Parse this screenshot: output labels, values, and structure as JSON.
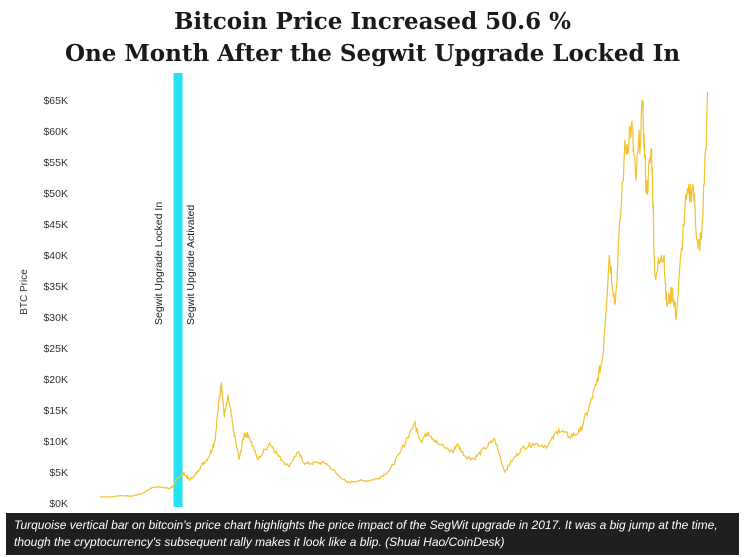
{
  "header": {
    "title_line1": "Bitcoin Price Increased 50.6 %",
    "title_line2": "One Month After the Segwit Upgrade Locked In"
  },
  "caption": {
    "text": "Turquoise vertical bar on bitcoin's price chart highlights the price impact of the SegWit upgrade in 2017. It was a big jump at the time, though the cryptocurrency's subsequent rally makes it look like a blip. (Shuai Hao/CoinDesk)"
  },
  "chart_data": {
    "type": "line",
    "title": "Bitcoin Price Increased 50.6 % One Month After the Segwit Upgrade Locked In",
    "ylabel": "BTC Price",
    "xlabel": "",
    "ylim": [
      0,
      65000
    ],
    "yticks": [
      {
        "value": 0,
        "label": "$0K"
      },
      {
        "value": 5000,
        "label": "$5K"
      },
      {
        "value": 10000,
        "label": "$10K"
      },
      {
        "value": 15000,
        "label": "$15K"
      },
      {
        "value": 20000,
        "label": "$20K"
      },
      {
        "value": 25000,
        "label": "$25K"
      },
      {
        "value": 30000,
        "label": "$30K"
      },
      {
        "value": 35000,
        "label": "$35K"
      },
      {
        "value": 40000,
        "label": "$40K"
      },
      {
        "value": 45000,
        "label": "$45K"
      },
      {
        "value": 50000,
        "label": "$50K"
      },
      {
        "value": 55000,
        "label": "$55K"
      },
      {
        "value": 60000,
        "label": "$60K"
      },
      {
        "value": 65000,
        "label": "$65K"
      }
    ],
    "xlim": [
      "2017-01-01",
      "2021-10-31"
    ],
    "grid": false,
    "annotations": [
      {
        "label": "Segwit Upgrade Locked In",
        "date": "2017-08-08"
      },
      {
        "label": "Segwit Upgrade Activated",
        "date": "2017-08-24"
      }
    ],
    "highlight": {
      "start": "2017-08-01",
      "end": "2017-08-24",
      "color": "#27e0f2"
    },
    "series": [
      {
        "name": "",
        "color": "#f2c230",
        "points": [
          [
            "2017-01-01",
            1000
          ],
          [
            "2017-02-01",
            1000
          ],
          [
            "2017-03-01",
            1200
          ],
          [
            "2017-04-01",
            1100
          ],
          [
            "2017-05-01",
            1500
          ],
          [
            "2017-06-01",
            2500
          ],
          [
            "2017-07-01",
            2600
          ],
          [
            "2017-07-20",
            2300
          ],
          [
            "2017-08-01",
            2800
          ],
          [
            "2017-08-15",
            4200
          ],
          [
            "2017-09-01",
            4800
          ],
          [
            "2017-09-15",
            3700
          ],
          [
            "2017-10-01",
            4400
          ],
          [
            "2017-10-20",
            6000
          ],
          [
            "2017-11-10",
            7400
          ],
          [
            "2017-11-28",
            10000
          ],
          [
            "2017-12-10",
            16500
          ],
          [
            "2017-12-17",
            19500
          ],
          [
            "2017-12-25",
            14000
          ],
          [
            "2018-01-06",
            17000
          ],
          [
            "2018-01-20",
            12000
          ],
          [
            "2018-02-06",
            7000
          ],
          [
            "2018-02-20",
            11000
          ],
          [
            "2018-03-05",
            11000
          ],
          [
            "2018-04-01",
            7000
          ],
          [
            "2018-05-05",
            9700
          ],
          [
            "2018-06-01",
            7500
          ],
          [
            "2018-06-28",
            5900
          ],
          [
            "2018-07-25",
            8200
          ],
          [
            "2018-08-15",
            6300
          ],
          [
            "2018-09-15",
            6500
          ],
          [
            "2018-10-15",
            6400
          ],
          [
            "2018-11-20",
            4400
          ],
          [
            "2018-12-15",
            3300
          ],
          [
            "2019-01-15",
            3600
          ],
          [
            "2019-02-15",
            3600
          ],
          [
            "2019-03-15",
            4000
          ],
          [
            "2019-04-15",
            5200
          ],
          [
            "2019-05-15",
            8000
          ],
          [
            "2019-06-26",
            12900
          ],
          [
            "2019-07-15",
            10000
          ],
          [
            "2019-08-05",
            11500
          ],
          [
            "2019-09-01",
            9600
          ],
          [
            "2019-10-15",
            8200
          ],
          [
            "2019-10-27",
            9500
          ],
          [
            "2019-11-20",
            7500
          ],
          [
            "2019-12-15",
            7100
          ],
          [
            "2020-01-15",
            8800
          ],
          [
            "2020-02-13",
            10300
          ],
          [
            "2020-03-12",
            5000
          ],
          [
            "2020-04-01",
            6700
          ],
          [
            "2020-05-01",
            8800
          ],
          [
            "2020-06-01",
            9600
          ],
          [
            "2020-07-15",
            9200
          ],
          [
            "2020-08-15",
            11900
          ],
          [
            "2020-09-15",
            10700
          ],
          [
            "2020-10-15",
            11500
          ],
          [
            "2020-11-10",
            15300
          ],
          [
            "2020-12-01",
            19000
          ],
          [
            "2020-12-20",
            23500
          ],
          [
            "2021-01-08",
            40000
          ],
          [
            "2021-01-25",
            32000
          ],
          [
            "2021-02-20",
            56000
          ],
          [
            "2021-03-13",
            61000
          ],
          [
            "2021-03-25",
            52000
          ],
          [
            "2021-04-14",
            63500
          ],
          [
            "2021-04-25",
            50000
          ],
          [
            "2021-05-10",
            57000
          ],
          [
            "2021-05-19",
            37000
          ],
          [
            "2021-06-15",
            40000
          ],
          [
            "2021-06-22",
            32000
          ],
          [
            "2021-07-10",
            34000
          ],
          [
            "2021-07-20",
            30000
          ],
          [
            "2021-08-14",
            47500
          ],
          [
            "2021-09-06",
            51500
          ],
          [
            "2021-09-21",
            41000
          ],
          [
            "2021-10-01",
            43000
          ],
          [
            "2021-10-20",
            66000
          ]
        ]
      }
    ]
  }
}
